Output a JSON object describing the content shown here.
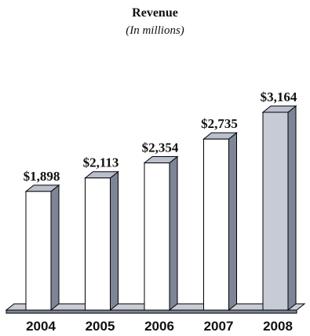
{
  "chart_data": {
    "type": "bar",
    "title": "Revenue",
    "subtitle": "(In millions)",
    "categories": [
      "2004",
      "2005",
      "2006",
      "2007",
      "2008"
    ],
    "values": [
      1898,
      2113,
      2354,
      2735,
      3164
    ],
    "value_labels": [
      "$1,898",
      "$2,113",
      "$2,354",
      "$2,735",
      "$3,164"
    ],
    "unit": "millions of dollars",
    "ylim": [
      0,
      3164
    ],
    "grid": false,
    "legend": "none",
    "highlight_index": 4,
    "colors": {
      "bar_face": "#ffffff",
      "bar_face_highlight": "#c6cbd6",
      "bar_top": "#b9bfcc",
      "bar_side": "#7d8596",
      "floor_top": "#c9ccd3",
      "floor_front": "#7d8596",
      "stroke": "#000000"
    }
  }
}
